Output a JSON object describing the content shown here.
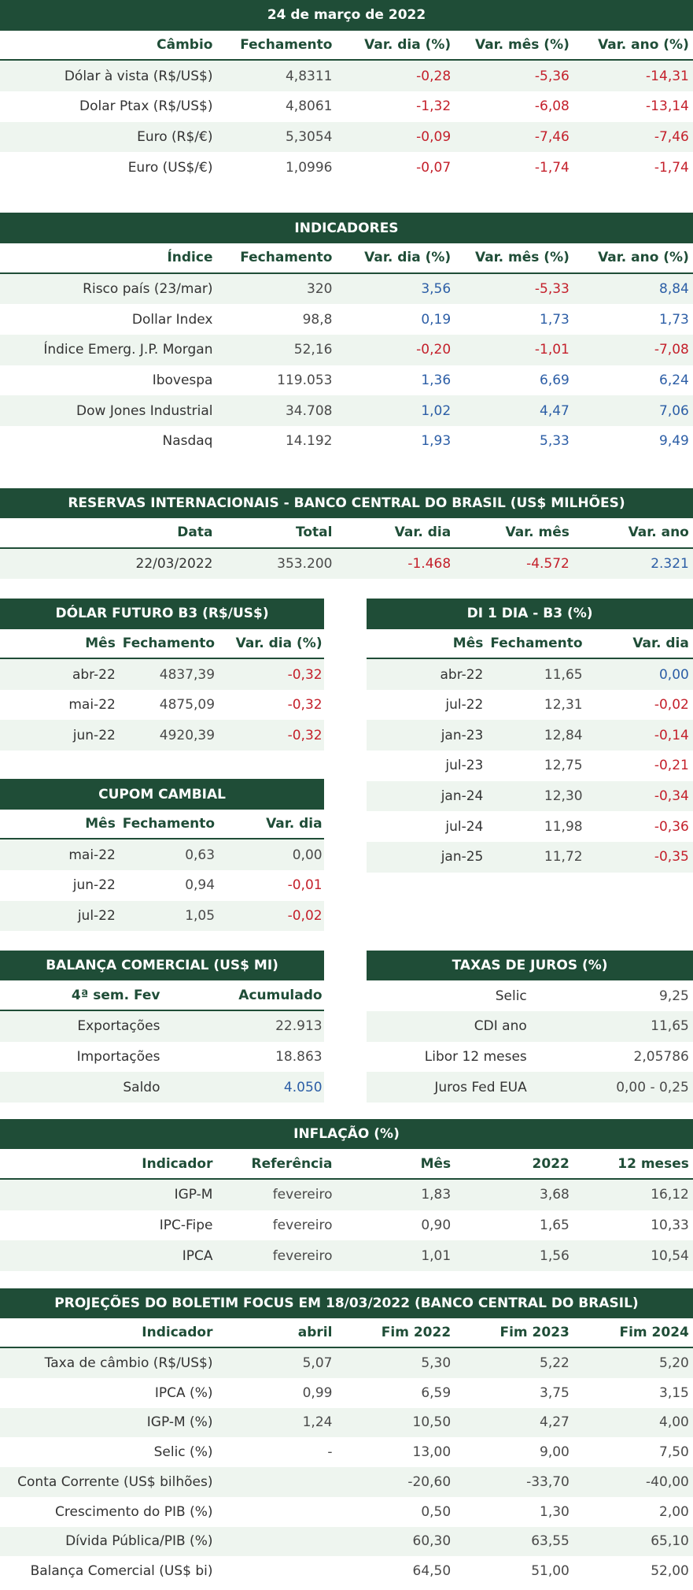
{
  "cambio": {
    "title": "24 de março de 2022",
    "columns": [
      "Câmbio",
      "Fechamento",
      "Var. dia (%)",
      "Var. mês (%)",
      "Var. ano (%)"
    ],
    "rows": [
      [
        "Dólar à vista (R$/US$)",
        "4,8311",
        "-0,28",
        "-5,36",
        "-14,31"
      ],
      [
        "Dolar Ptax (R$/US$)",
        "4,8061",
        "-1,32",
        "-6,08",
        "-13,14"
      ],
      [
        "Euro (R$/€)",
        "5,3054",
        "-0,09",
        "-7,46",
        "-7,46"
      ],
      [
        "Euro (US$/€)",
        "1,0996",
        "-0,07",
        "-1,74",
        "-1,74"
      ]
    ]
  },
  "indicadores": {
    "title": "INDICADORES",
    "columns": [
      "Índice",
      "Fechamento",
      "Var. dia (%)",
      "Var. mês (%)",
      "Var. ano (%)"
    ],
    "rows": [
      [
        "Risco país (23/mar)",
        "320",
        "3,56",
        "-5,33",
        "8,84"
      ],
      [
        "Dollar Index",
        "98,8",
        "0,19",
        "1,73",
        "1,73"
      ],
      [
        "Índice Emerg. J.P. Morgan",
        "52,16",
        "-0,20",
        "-1,01",
        "-7,08"
      ],
      [
        "Ibovespa",
        "119.053",
        "1,36",
        "6,69",
        "6,24"
      ],
      [
        "Dow Jones Industrial",
        "34.708",
        "1,02",
        "4,47",
        "7,06"
      ],
      [
        "Nasdaq",
        "14.192",
        "1,93",
        "5,33",
        "9,49"
      ]
    ]
  },
  "reservas": {
    "title": "RESERVAS INTERNACIONAIS - BANCO CENTRAL DO BRASIL (US$ MILHÕES)",
    "columns": [
      "Data",
      "Total",
      "Var. dia",
      "Var. mês",
      "Var. ano"
    ],
    "rows": [
      [
        "22/03/2022",
        "353.200",
        "-1.468",
        "-4.572",
        "2.321"
      ]
    ]
  },
  "dolar_futuro": {
    "title": "DÓLAR FUTURO B3 (R$/US$)",
    "columns": [
      "Mês",
      "Fechamento",
      "Var. dia (%)"
    ],
    "rows": [
      [
        "abr-22",
        "4837,39",
        "-0,32"
      ],
      [
        "mai-22",
        "4875,09",
        "-0,32"
      ],
      [
        "jun-22",
        "4920,39",
        "-0,32"
      ]
    ]
  },
  "di1": {
    "title": "DI 1 DIA - B3 (%)",
    "columns": [
      "Mês",
      "Fechamento",
      "Var. dia"
    ],
    "rows": [
      [
        "abr-22",
        "11,65",
        "0,00"
      ],
      [
        "jul-22",
        "12,31",
        "-0,02"
      ],
      [
        "jan-23",
        "12,84",
        "-0,14"
      ],
      [
        "jul-23",
        "12,75",
        "-0,21"
      ],
      [
        "jan-24",
        "12,30",
        "-0,34"
      ],
      [
        "jul-24",
        "11,98",
        "-0,36"
      ],
      [
        "jan-25",
        "11,72",
        "-0,35"
      ]
    ]
  },
  "cupom": {
    "title": "CUPOM CAMBIAL",
    "columns": [
      "Mês",
      "Fechamento",
      "Var. dia"
    ],
    "rows": [
      [
        "mai-22",
        "0,63",
        "0,00"
      ],
      [
        "jun-22",
        "0,94",
        "-0,01"
      ],
      [
        "jul-22",
        "1,05",
        "-0,02"
      ]
    ]
  },
  "balanca": {
    "title": "BALANÇA COMERCIAL (US$ MI)",
    "columns": [
      "4ª sem. Fev",
      "Acumulado"
    ],
    "rows": [
      [
        "Exportações",
        "22.913"
      ],
      [
        "Importações",
        "18.863"
      ],
      [
        "Saldo",
        "4.050"
      ]
    ]
  },
  "taxas": {
    "title": "TAXAS DE JUROS (%)",
    "rows": [
      [
        "Selic",
        "9,25"
      ],
      [
        "CDI ano",
        "11,65"
      ],
      [
        "Libor 12 meses",
        "2,05786"
      ],
      [
        "Juros Fed EUA",
        "0,00 - 0,25"
      ]
    ]
  },
  "inflacao": {
    "title": "INFLAÇÃO (%)",
    "columns": [
      "Indicador",
      "Referência",
      "Mês",
      "2022",
      "12 meses"
    ],
    "rows": [
      [
        "IGP-M",
        "fevereiro",
        "1,83",
        "3,68",
        "16,12"
      ],
      [
        "IPC-Fipe",
        "fevereiro",
        "0,90",
        "1,65",
        "10,33"
      ],
      [
        "IPCA",
        "fevereiro",
        "1,01",
        "1,56",
        "10,54"
      ]
    ]
  },
  "focus": {
    "title": "PROJEÇÕES DO BOLETIM FOCUS EM 18/03/2022 (BANCO CENTRAL DO BRASIL)",
    "columns": [
      "Indicador",
      "abril",
      "Fim 2022",
      "Fim 2023",
      "Fim 2024"
    ],
    "rows": [
      [
        "Taxa de câmbio (R$/US$)",
        "5,07",
        "5,30",
        "5,22",
        "5,20"
      ],
      [
        "IPCA (%)",
        "0,99",
        "6,59",
        "3,75",
        "3,15"
      ],
      [
        "IGP-M (%)",
        "1,24",
        "10,50",
        "4,27",
        "4,00"
      ],
      [
        "Selic (%)",
        "-",
        "13,00",
        "9,00",
        "7,50"
      ],
      [
        "Conta Corrente (US$ bilhões)",
        null,
        "-20,60",
        "-33,70",
        "-40,00"
      ],
      [
        "Crescimento do PIB (%)",
        null,
        "0,50",
        "1,30",
        "2,00"
      ],
      [
        "Dívida Pública/PIB (%)",
        null,
        "60,30",
        "63,55",
        "65,10"
      ],
      [
        "Balança Comercial (US$ bi)",
        null,
        "64,50",
        "51,00",
        "52,00"
      ]
    ]
  }
}
